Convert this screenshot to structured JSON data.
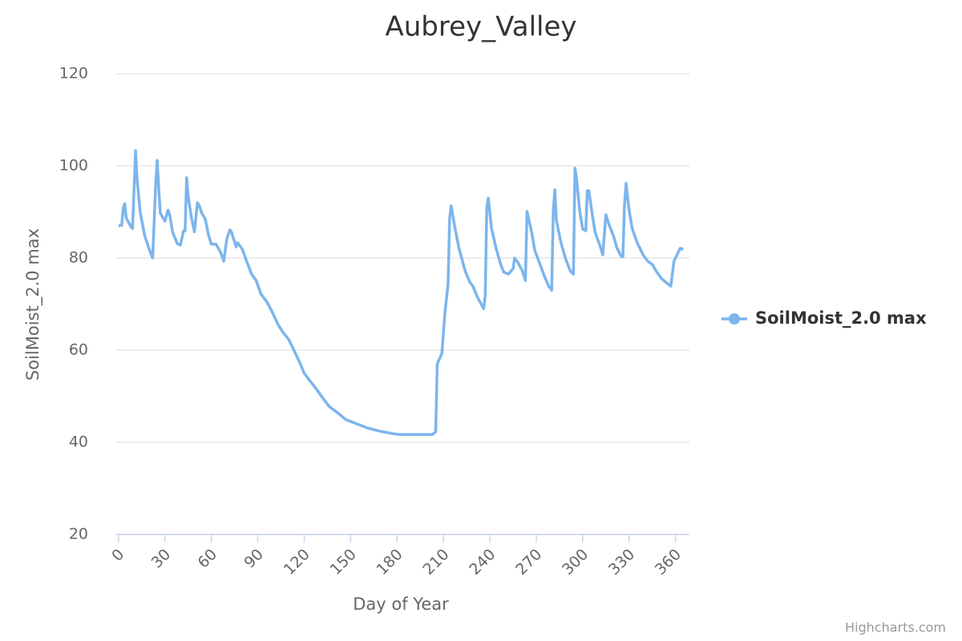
{
  "chart_data": {
    "type": "line",
    "title": "Aubrey_Valley",
    "x_label": "Day of Year",
    "y_label": "SoilMoist_2.0 max",
    "xlim": [
      -1.5,
      369
    ],
    "ylim": [
      20,
      120
    ],
    "xticks": [
      0,
      30,
      60,
      90,
      120,
      150,
      180,
      210,
      240,
      270,
      300,
      330,
      360
    ],
    "yticks": [
      20,
      40,
      60,
      80,
      100,
      120
    ],
    "grid": true,
    "legend": "right",
    "credits": "Highcharts.com",
    "series": [
      {
        "name": "SoilMoist_2.0 max",
        "color": "#7cb5ec",
        "x": [
          0,
          2,
          3,
          4,
          5,
          8,
          9,
          11,
          12,
          14,
          17,
          20,
          22,
          24,
          25,
          26,
          27,
          30,
          32,
          33,
          35,
          38,
          40,
          42,
          43,
          44,
          45,
          47,
          49,
          51,
          52,
          54,
          56,
          58,
          60,
          63,
          66,
          68,
          70,
          72,
          73,
          76,
          77,
          80,
          83,
          86,
          89,
          92,
          96,
          99,
          103,
          106,
          110,
          113,
          117,
          120,
          124,
          128,
          132,
          136,
          142,
          147,
          154,
          161,
          169,
          177,
          181,
          203,
          205,
          206,
          209,
          211,
          213,
          214,
          215,
          217,
          220,
          224,
          227,
          229,
          232,
          236,
          237,
          238,
          239,
          241,
          244,
          247,
          249,
          252,
          255,
          256,
          258,
          261,
          263,
          264,
          267,
          269,
          272,
          275,
          278,
          280,
          281,
          282,
          283,
          286,
          289,
          292,
          294,
          295,
          296,
          298,
          300,
          302,
          303,
          304,
          306,
          308,
          311,
          313,
          315,
          317,
          320,
          322,
          325,
          326,
          327,
          328,
          330,
          332,
          335,
          339,
          342,
          345,
          348,
          351,
          355,
          357,
          359,
          361,
          363,
          365
        ],
        "values": [
          87.0,
          87.1,
          90.8,
          91.8,
          88.7,
          86.8,
          86.4,
          103.3,
          96.9,
          89.9,
          84.7,
          81.7,
          80.0,
          96.0,
          101.2,
          94.8,
          89.7,
          88.0,
          90.4,
          89.4,
          85.6,
          83.1,
          82.8,
          85.9,
          85.9,
          97.4,
          93.4,
          89.0,
          85.7,
          92.0,
          91.5,
          89.6,
          88.5,
          85.2,
          83.0,
          83.0,
          81.2,
          79.3,
          84.2,
          86.1,
          85.6,
          82.4,
          83.3,
          81.9,
          79.1,
          76.5,
          75.1,
          72.2,
          70.4,
          68.5,
          65.6,
          64.0,
          62.3,
          60.2,
          57.4,
          55.0,
          53.2,
          51.5,
          49.6,
          47.8,
          46.3,
          44.9,
          44.0,
          43.1,
          42.4,
          41.9,
          41.7,
          41.7,
          42.3,
          57.0,
          59.3,
          68.2,
          74.3,
          88.7,
          91.3,
          87.3,
          82.1,
          77.2,
          74.8,
          73.9,
          71.5,
          69.0,
          71.8,
          91.1,
          93.0,
          86.6,
          82.1,
          78.6,
          76.9,
          76.5,
          77.7,
          80.0,
          79.1,
          77.2,
          75.1,
          90.1,
          85.6,
          81.7,
          79.0,
          76.3,
          73.9,
          73.0,
          90.4,
          94.8,
          88.2,
          83.3,
          79.8,
          77.2,
          76.5,
          99.5,
          97.4,
          90.4,
          86.3,
          85.9,
          94.6,
          94.6,
          89.9,
          85.6,
          82.8,
          80.7,
          89.4,
          87.3,
          84.7,
          82.3,
          80.3,
          80.3,
          91.1,
          96.2,
          90.4,
          86.4,
          83.5,
          80.7,
          79.3,
          78.6,
          76.9,
          75.5,
          74.4,
          73.9,
          79.3,
          80.7,
          82.1,
          81.9
        ]
      }
    ]
  }
}
